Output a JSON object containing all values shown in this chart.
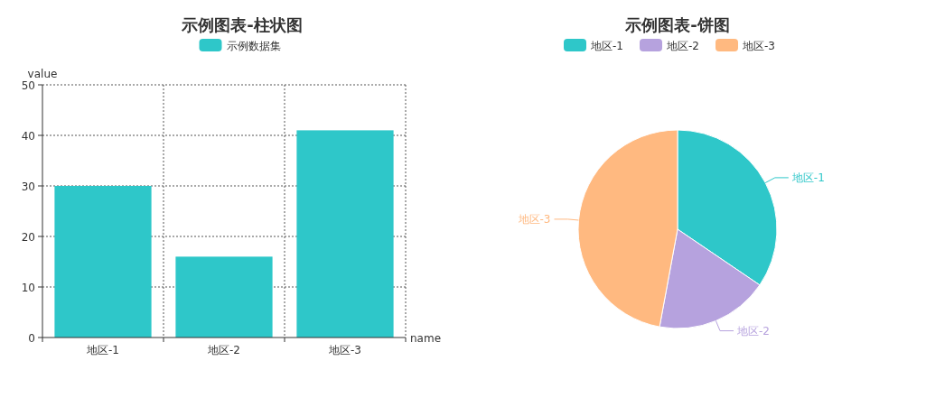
{
  "chart_data": [
    {
      "type": "bar",
      "title": "示例图表-柱状图",
      "categories": [
        "地区-1",
        "地区-2",
        "地区-3"
      ],
      "series": [
        {
          "name": "示例数据集",
          "color": "#2ec7c9",
          "values": [
            30,
            16,
            41
          ]
        }
      ],
      "xlabel": "name",
      "ylabel": "value",
      "ylim": [
        0,
        50
      ],
      "yticks": [
        0,
        10,
        20,
        30,
        40,
        50
      ],
      "grid": true,
      "legend": "top"
    },
    {
      "type": "pie",
      "title": "示例图表-饼图",
      "categories": [
        "地区-1",
        "地区-2",
        "地区-3"
      ],
      "values": [
        34.5,
        18.4,
        47.1
      ],
      "colors": [
        "#2ec7c9",
        "#b6a2de",
        "#ffb980"
      ],
      "legend": "top"
    }
  ]
}
